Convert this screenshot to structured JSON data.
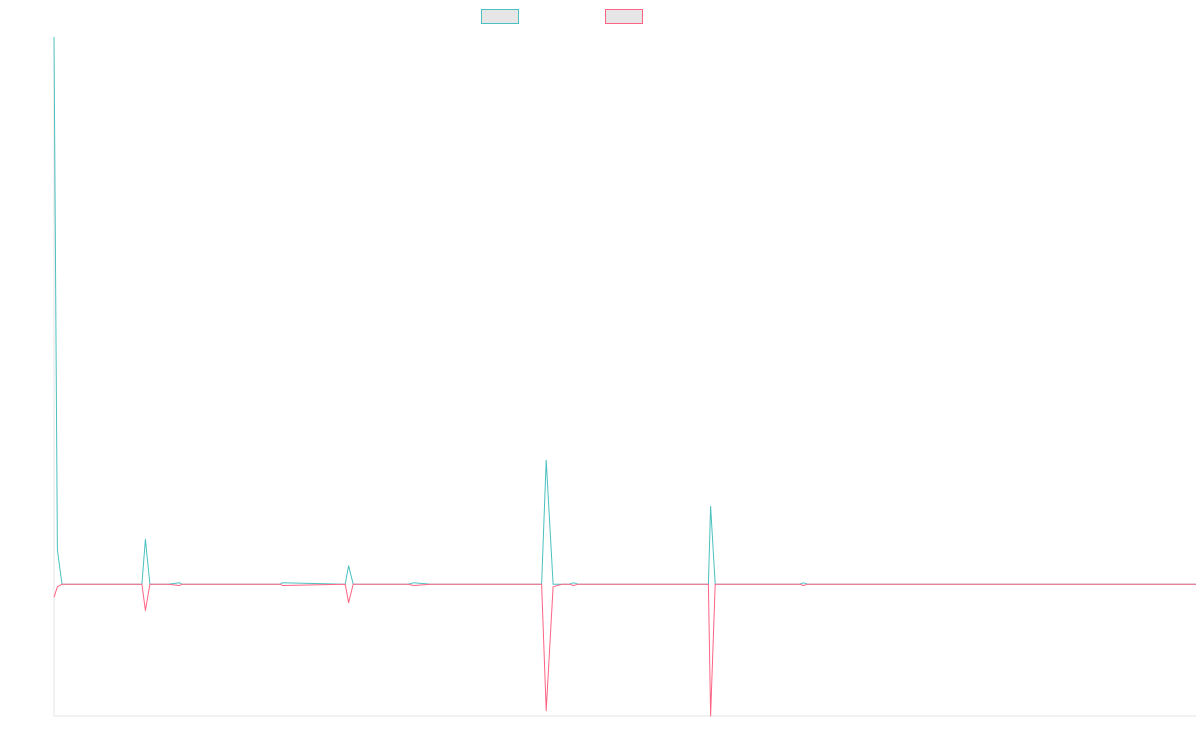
{
  "chart_data": {
    "type": "line",
    "title": "",
    "xlabel": "",
    "ylabel": "",
    "xlim": [
      0,
      1000
    ],
    "ylim": [
      -100,
      415
    ],
    "grid": false,
    "legend": "top-center",
    "series": [
      {
        "color": "#4bc0c0",
        "x": [
          0,
          3,
          7,
          77,
          80,
          84,
          100,
          110,
          112,
          198,
          200,
          255,
          258,
          262,
          310,
          315,
          330,
          338,
          427,
          431,
          437,
          445,
          451,
          455,
          459,
          465,
          573,
          575,
          579,
          653,
          656,
          660,
          1000
        ],
        "y": [
          415,
          26,
          0,
          0,
          34,
          0,
          0,
          1,
          0,
          0,
          1,
          0,
          14,
          0,
          0,
          1,
          0,
          0,
          0,
          94,
          0,
          0,
          0,
          1,
          0,
          0,
          0,
          59,
          0,
          0,
          1,
          0,
          0
        ]
      },
      {
        "color": "#ff6384",
        "x": [
          0,
          3,
          7,
          77,
          80,
          84,
          100,
          110,
          112,
          198,
          200,
          255,
          258,
          262,
          310,
          315,
          330,
          338,
          427,
          431,
          437,
          445,
          451,
          455,
          459,
          465,
          573,
          575,
          579,
          653,
          656,
          660,
          1000
        ],
        "y": [
          -10,
          -2,
          0,
          0,
          -20,
          0,
          0,
          -1,
          0,
          0,
          -1,
          0,
          -14,
          0,
          0,
          -1,
          0,
          0,
          0,
          -96,
          -2,
          0,
          0,
          -1,
          0,
          0,
          0,
          -100,
          0,
          0,
          -1,
          0,
          0
        ]
      }
    ]
  }
}
